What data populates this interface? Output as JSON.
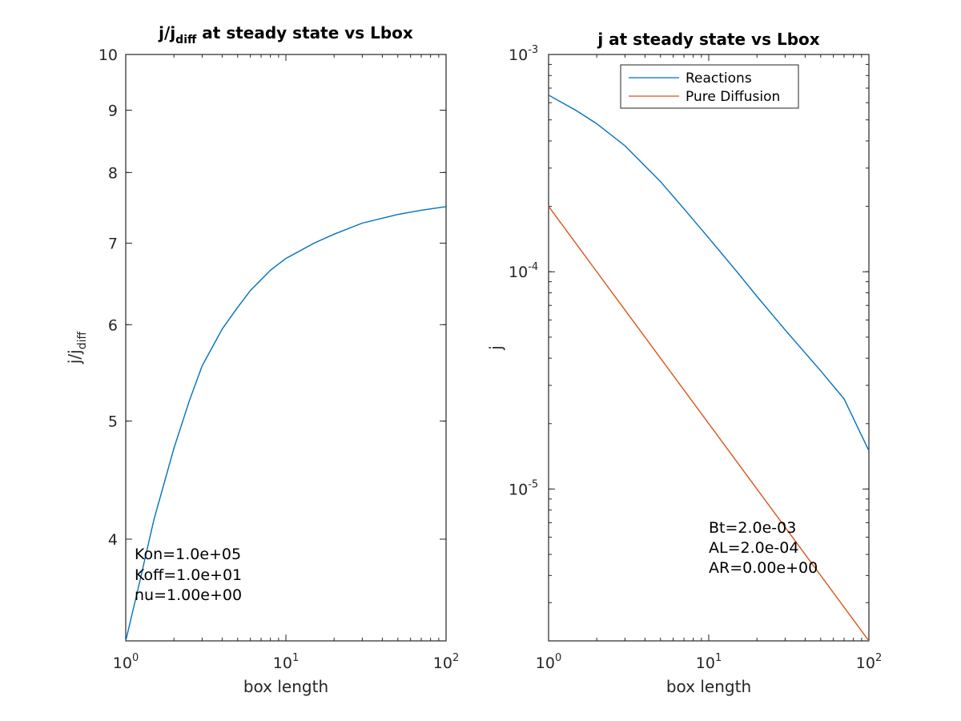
{
  "chart_data": [
    {
      "type": "line",
      "title": "j/j_diff at steady state vs Lbox",
      "title_main": "j/j",
      "title_sub": "diff",
      "title_rest": " at steady state vs Lbox",
      "xlabel": "box length",
      "ylabel_main": "j/j",
      "ylabel_sub": "diff",
      "xscale": "log",
      "yscale": "log",
      "xlim": [
        1,
        100
      ],
      "ylim": [
        3.3,
        10
      ],
      "xticks": [
        {
          "value": 1,
          "base": "10",
          "exp": "0"
        },
        {
          "value": 10,
          "base": "10",
          "exp": "1"
        },
        {
          "value": 100,
          "base": "10",
          "exp": "2"
        }
      ],
      "yticks": [
        {
          "value": 4,
          "label": "4"
        },
        {
          "value": 5,
          "label": "5"
        },
        {
          "value": 6,
          "label": "6"
        },
        {
          "value": 7,
          "label": "7"
        },
        {
          "value": 8,
          "label": "8"
        },
        {
          "value": 9,
          "label": "9"
        },
        {
          "value": 10,
          "label": "10"
        }
      ],
      "series": [
        {
          "color": "#0072BD",
          "x": [
            1,
            1.2,
            1.5,
            2,
            2.5,
            3,
            4,
            5,
            6,
            8,
            10,
            15,
            20,
            30,
            50,
            70,
            100
          ],
          "y": [
            3.3,
            3.65,
            4.15,
            4.75,
            5.2,
            5.55,
            5.95,
            6.2,
            6.4,
            6.65,
            6.8,
            7.0,
            7.12,
            7.27,
            7.39,
            7.45,
            7.5
          ]
        }
      ],
      "annotations": [
        "Kon=1.0e+05",
        "Koff=1.0e+01",
        "nu=1.00e+00"
      ],
      "grid": false
    },
    {
      "type": "line",
      "title": "j at steady state vs Lbox",
      "xlabel": "box length",
      "ylabel": "j",
      "xscale": "log",
      "yscale": "log",
      "xlim": [
        1,
        100
      ],
      "ylim": [
        2e-06,
        0.001
      ],
      "xticks": [
        {
          "value": 1,
          "base": "10",
          "exp": "0"
        },
        {
          "value": 10,
          "base": "10",
          "exp": "1"
        },
        {
          "value": 100,
          "base": "10",
          "exp": "2"
        }
      ],
      "yticks": [
        {
          "value": 1e-05,
          "base": "10",
          "exp": "-5"
        },
        {
          "value": 0.0001,
          "base": "10",
          "exp": "-4"
        },
        {
          "value": 0.001,
          "base": "10",
          "exp": "-3"
        }
      ],
      "legend": {
        "position": "top",
        "entries": [
          "Reactions",
          "Pure Diffusion"
        ]
      },
      "series": [
        {
          "name": "Reactions",
          "color": "#0072BD",
          "x": [
            1,
            1.5,
            2,
            3,
            5,
            7,
            10,
            15,
            20,
            30,
            50,
            70,
            100
          ],
          "y": [
            0.00065,
            0.00055,
            0.00048,
            0.00038,
            0.00026,
            0.000195,
            0.000143,
            0.0001,
            7.7e-05,
            5.4e-05,
            3.5e-05,
            2.6e-05,
            1.5e-05
          ]
        },
        {
          "name": "Pure Diffusion",
          "color": "#D95319",
          "x": [
            1,
            100
          ],
          "y": [
            0.0002,
            2e-06
          ]
        }
      ],
      "annotations": [
        "Bt=2.0e-03",
        "AL=2.0e-04",
        "AR=0.00e+00"
      ],
      "grid": false
    }
  ]
}
